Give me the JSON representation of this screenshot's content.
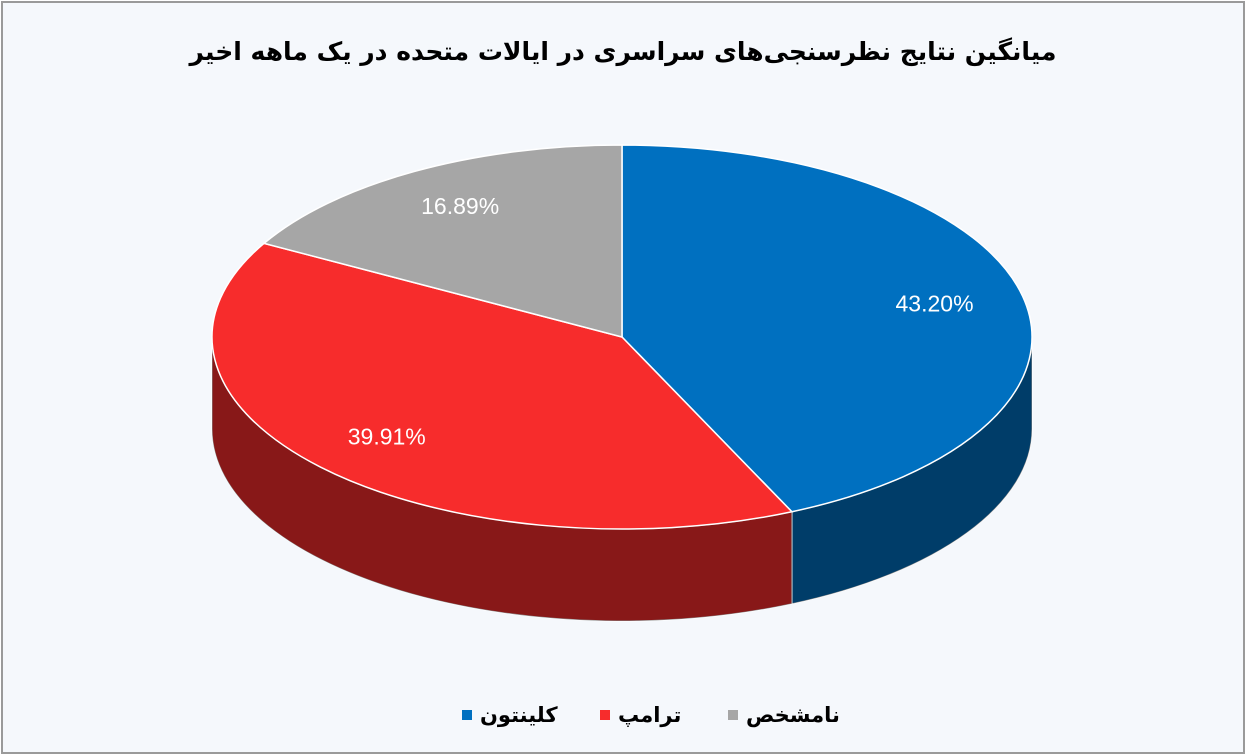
{
  "chart_data": {
    "type": "pie",
    "title": "میانگین نتایج نظرسنجی‌های سراسری در ایالات متحده در یک ماهه اخیر",
    "categories": [
      "کلینتون",
      "ترامپ",
      "نامشخص"
    ],
    "values": [
      43.2,
      39.91,
      16.89
    ],
    "value_labels": [
      "43.20%",
      "39.91%",
      "16.89%"
    ],
    "colors": [
      "#0070c0",
      "#f72c2c",
      "#a6a6a6"
    ],
    "legend": "bottom"
  }
}
